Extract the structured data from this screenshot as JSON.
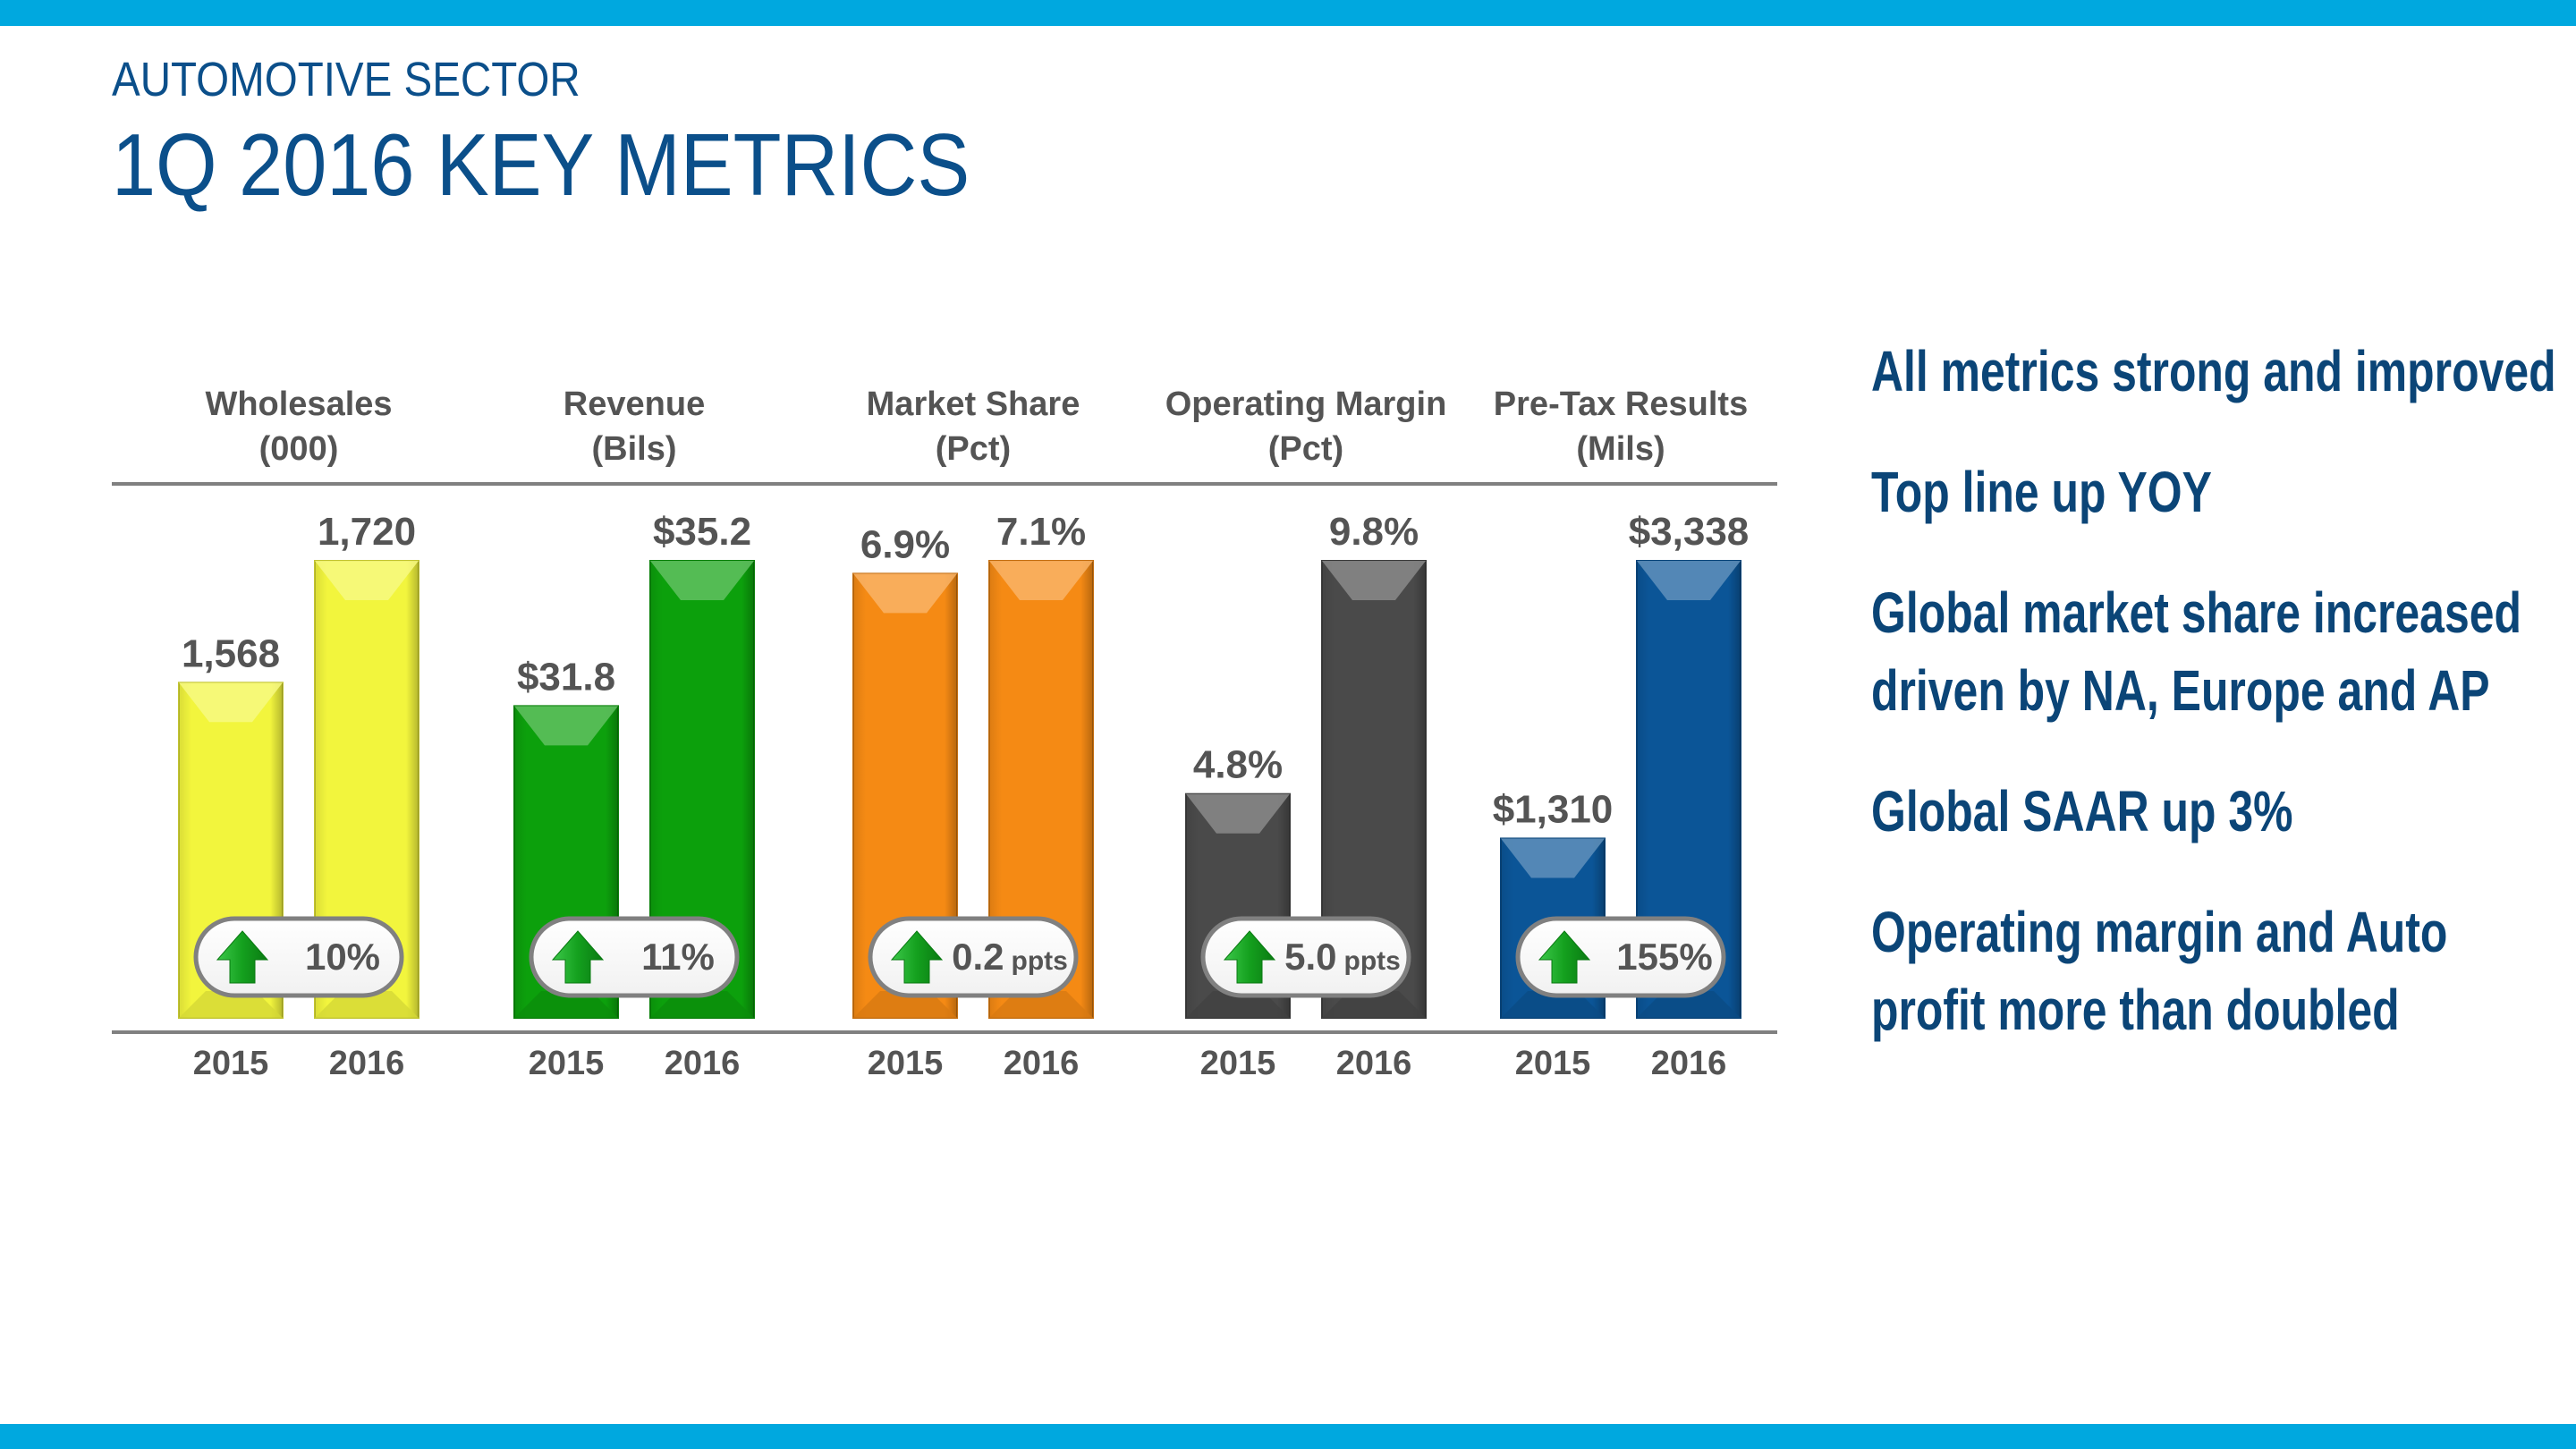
{
  "header": {
    "subtitle": "AUTOMOTIVE SECTOR",
    "title": "1Q 2016 KEY METRICS"
  },
  "colors": {
    "band": "#00a8df",
    "title": "#0b4f8a",
    "label_text": "#545454",
    "rule": "#808080",
    "up_arrow": "#14a01e"
  },
  "chart_data": {
    "type": "bar",
    "title": "1Q 2016 Key Metrics",
    "categories": [
      "2015",
      "2016"
    ],
    "grid": false,
    "legend": "none",
    "panels": [
      {
        "name": "Wholesales",
        "unit": "(000)",
        "color": "#f2f53d",
        "values": [
          1568,
          1720
        ],
        "labels": [
          "1,568",
          "1,720"
        ],
        "change": {
          "direction": "up",
          "value": "10%",
          "unit": ""
        }
      },
      {
        "name": "Revenue",
        "unit": "(Bils)",
        "color": "#0ca00c",
        "values": [
          31.8,
          35.2
        ],
        "labels": [
          "$31.8",
          "$35.2"
        ],
        "change": {
          "direction": "up",
          "value": "11%",
          "unit": ""
        }
      },
      {
        "name": "Market Share",
        "unit": "(Pct)",
        "color": "#f58a14",
        "values": [
          6.9,
          7.1
        ],
        "labels": [
          "6.9%",
          "7.1%"
        ],
        "change": {
          "direction": "up",
          "value": "0.2",
          "unit": "ppts"
        }
      },
      {
        "name": "Operating Margin",
        "unit": "(Pct)",
        "color": "#4a4a4a",
        "values": [
          4.8,
          9.8
        ],
        "labels": [
          "4.8%",
          "9.8%"
        ],
        "change": {
          "direction": "up",
          "value": "5.0",
          "unit": "ppts"
        }
      },
      {
        "name": "Pre-Tax Results",
        "unit": "(Mils)",
        "color": "#0b5597",
        "values": [
          1310,
          3338
        ],
        "labels": [
          "$1,310",
          "$3,338"
        ],
        "change": {
          "direction": "up",
          "value": "155%",
          "unit": ""
        }
      }
    ]
  },
  "bullets": [
    "All metrics strong and improved",
    "Top line up YOY",
    "Global market share increased driven by NA, Europe and AP",
    "Global SAAR up 3%",
    "Operating margin and Auto profit more than doubled"
  ]
}
